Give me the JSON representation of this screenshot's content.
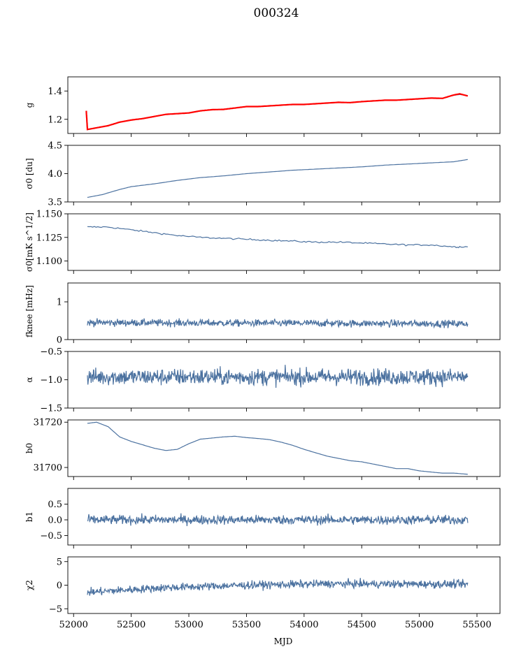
{
  "figure": {
    "title": "000324",
    "xlabel": "MJD"
  },
  "colors": {
    "series": "#4c72a0",
    "fit": "#ff0000",
    "frame": "#000000"
  },
  "chart_data": {
    "type": "line",
    "title": "000324",
    "shared_x": {
      "label": "MJD",
      "range": [
        51950,
        55700
      ],
      "ticks": [
        52000,
        52500,
        53000,
        53500,
        54000,
        54500,
        55000,
        55500
      ],
      "tick_labels": [
        "52000",
        "52500",
        "53000",
        "53500",
        "54000",
        "54500",
        "55000",
        "55500"
      ],
      "data_span": [
        52120,
        55420
      ]
    },
    "grid": false,
    "panels": [
      {
        "ylabel": "g",
        "ylim": [
          1.1,
          1.5
        ],
        "yticks": [
          1.2,
          1.4
        ],
        "ytick_labels": [
          "1.2",
          "1.4"
        ],
        "series": [
          {
            "points": [
              [
                52120,
                1.128
              ],
              [
                52200,
                1.14
              ],
              [
                52300,
                1.155
              ],
              [
                52400,
                1.18
              ],
              [
                52500,
                1.195
              ],
              [
                52600,
                1.205
              ],
              [
                52700,
                1.22
              ],
              [
                52800,
                1.235
              ],
              [
                52900,
                1.24
              ],
              [
                53000,
                1.245
              ],
              [
                53100,
                1.26
              ],
              [
                53200,
                1.268
              ],
              [
                53300,
                1.27
              ],
              [
                53400,
                1.28
              ],
              [
                53500,
                1.29
              ],
              [
                53600,
                1.29
              ],
              [
                53700,
                1.295
              ],
              [
                53800,
                1.3
              ],
              [
                53900,
                1.305
              ],
              [
                54000,
                1.305
              ],
              [
                54100,
                1.31
              ],
              [
                54200,
                1.315
              ],
              [
                54300,
                1.32
              ],
              [
                54400,
                1.318
              ],
              [
                54500,
                1.325
              ],
              [
                54600,
                1.33
              ],
              [
                54700,
                1.335
              ],
              [
                54800,
                1.335
              ],
              [
                54900,
                1.34
              ],
              [
                55000,
                1.345
              ],
              [
                55100,
                1.35
              ],
              [
                55200,
                1.348
              ],
              [
                55300,
                1.37
              ],
              [
                55350,
                1.375
              ],
              [
                55420,
                1.368
              ]
            ]
          },
          {
            "color_role": "fit",
            "points": [
              [
                52110,
                1.26
              ],
              [
                52120,
                1.128
              ],
              [
                52200,
                1.14
              ],
              [
                52300,
                1.155
              ],
              [
                52400,
                1.18
              ],
              [
                52500,
                1.195
              ],
              [
                52600,
                1.205
              ],
              [
                52700,
                1.22
              ],
              [
                52800,
                1.235
              ],
              [
                52900,
                1.24
              ],
              [
                53000,
                1.245
              ],
              [
                53100,
                1.26
              ],
              [
                53200,
                1.268
              ],
              [
                53300,
                1.27
              ],
              [
                53400,
                1.28
              ],
              [
                53500,
                1.29
              ],
              [
                53600,
                1.29
              ],
              [
                53700,
                1.295
              ],
              [
                53800,
                1.3
              ],
              [
                53900,
                1.305
              ],
              [
                54000,
                1.305
              ],
              [
                54100,
                1.31
              ],
              [
                54200,
                1.315
              ],
              [
                54300,
                1.32
              ],
              [
                54400,
                1.318
              ],
              [
                54500,
                1.325
              ],
              [
                54600,
                1.33
              ],
              [
                54700,
                1.335
              ],
              [
                54800,
                1.335
              ],
              [
                54900,
                1.34
              ],
              [
                55000,
                1.345
              ],
              [
                55100,
                1.35
              ],
              [
                55200,
                1.348
              ],
              [
                55300,
                1.372
              ],
              [
                55350,
                1.38
              ],
              [
                55420,
                1.365
              ]
            ]
          }
        ]
      },
      {
        "ylabel": "σ0 [du]",
        "ylim": [
          3.5,
          4.5
        ],
        "yticks": [
          3.5,
          4.0,
          4.5
        ],
        "ytick_labels": [
          "3.5",
          "4.0",
          "4.5"
        ],
        "series": [
          {
            "points": [
              [
                52120,
                3.58
              ],
              [
                52250,
                3.63
              ],
              [
                52400,
                3.72
              ],
              [
                52500,
                3.77
              ],
              [
                52700,
                3.82
              ],
              [
                52900,
                3.88
              ],
              [
                53100,
                3.93
              ],
              [
                53300,
                3.96
              ],
              [
                53500,
                4.0
              ],
              [
                53700,
                4.03
              ],
              [
                53900,
                4.06
              ],
              [
                54100,
                4.08
              ],
              [
                54300,
                4.1
              ],
              [
                54500,
                4.12
              ],
              [
                54700,
                4.15
              ],
              [
                54900,
                4.17
              ],
              [
                55100,
                4.19
              ],
              [
                55300,
                4.21
              ],
              [
                55420,
                4.25
              ]
            ]
          }
        ]
      },
      {
        "ylabel": "σ0[mK s^1/2]",
        "ylim": [
          1.09,
          1.15
        ],
        "yticks": [
          1.1,
          1.125,
          1.15
        ],
        "ytick_labels": [
          "1.100",
          "1.125",
          "1.150"
        ],
        "series": [
          {
            "points": [
              [
                52120,
                1.136
              ],
              [
                52300,
                1.136
              ],
              [
                52500,
                1.133
              ],
              [
                52700,
                1.13
              ],
              [
                52900,
                1.127
              ],
              [
                53100,
                1.125
              ],
              [
                53300,
                1.124
              ],
              [
                53500,
                1.123
              ],
              [
                53700,
                1.122
              ],
              [
                53900,
                1.121
              ],
              [
                54100,
                1.12
              ],
              [
                54300,
                1.12
              ],
              [
                54500,
                1.119
              ],
              [
                54700,
                1.118
              ],
              [
                54900,
                1.117
              ],
              [
                55100,
                1.117
              ],
              [
                55300,
                1.115
              ],
              [
                55420,
                1.115
              ]
            ]
          }
        ]
      },
      {
        "ylabel": "fknee [mHz]",
        "ylim": [
          0,
          1.5
        ],
        "yticks": [
          0,
          1
        ],
        "ytick_labels": [
          "0",
          "1"
        ],
        "series": [
          {
            "noise": true,
            "points": [
              [
                52120,
                0.45
              ],
              [
                55420,
                0.42
              ]
            ]
          }
        ]
      },
      {
        "ylabel": "α",
        "ylim": [
          -1.5,
          -0.5
        ],
        "yticks": [
          -1.5,
          -1.0,
          -0.5
        ],
        "ytick_labels": [
          "−1.5",
          "−1.0",
          "−0.5"
        ],
        "series": [
          {
            "noise": true,
            "points": [
              [
                52120,
                -0.95
              ],
              [
                55420,
                -0.95
              ]
            ]
          }
        ]
      },
      {
        "ylabel": "b0",
        "ylim": [
          31696,
          31721
        ],
        "yticks": [
          31700,
          31720
        ],
        "ytick_labels": [
          "31700",
          "31720"
        ],
        "series": [
          {
            "points": [
              [
                52120,
                31719.5
              ],
              [
                52200,
                31720
              ],
              [
                52300,
                31718
              ],
              [
                52400,
                31713.5
              ],
              [
                52500,
                31711.5
              ],
              [
                52600,
                31710
              ],
              [
                52700,
                31708.5
              ],
              [
                52800,
                31707.5
              ],
              [
                52900,
                31708
              ],
              [
                53000,
                31710.5
              ],
              [
                53100,
                31712.5
              ],
              [
                53200,
                31713
              ],
              [
                53300,
                31713.5
              ],
              [
                53400,
                31713.8
              ],
              [
                53500,
                31713.2
              ],
              [
                53600,
                31712.8
              ],
              [
                53700,
                31712.3
              ],
              [
                53800,
                31711.2
              ],
              [
                53900,
                31709.8
              ],
              [
                54000,
                31708
              ],
              [
                54100,
                31706.5
              ],
              [
                54200,
                31705
              ],
              [
                54300,
                31704
              ],
              [
                54400,
                31703
              ],
              [
                54500,
                31702.5
              ],
              [
                54600,
                31701.5
              ],
              [
                54700,
                31700.5
              ],
              [
                54800,
                31699.5
              ],
              [
                54900,
                31699.5
              ],
              [
                55000,
                31698.5
              ],
              [
                55100,
                31698
              ],
              [
                55200,
                31697.5
              ],
              [
                55300,
                31697.5
              ],
              [
                55420,
                31697
              ]
            ]
          }
        ]
      },
      {
        "ylabel": "b1",
        "ylim": [
          -0.8,
          1.0
        ],
        "yticks": [
          -0.5,
          0.0,
          0.5
        ],
        "ytick_labels": [
          "−0.5",
          "0.0",
          "0.5"
        ],
        "series": [
          {
            "noise": true,
            "points": [
              [
                52120,
                0.0
              ],
              [
                55420,
                0.0
              ]
            ]
          }
        ]
      },
      {
        "ylabel": "χ2",
        "ylim": [
          -6,
          6
        ],
        "yticks": [
          -5,
          0,
          5
        ],
        "ytick_labels": [
          "−5",
          "0",
          "5"
        ],
        "series": [
          {
            "noise": true,
            "points": [
              [
                52120,
                -1.5
              ],
              [
                52800,
                -0.5
              ],
              [
                53500,
                0.0
              ],
              [
                54200,
                0.3
              ],
              [
                55420,
                0.2
              ]
            ]
          }
        ]
      }
    ]
  }
}
